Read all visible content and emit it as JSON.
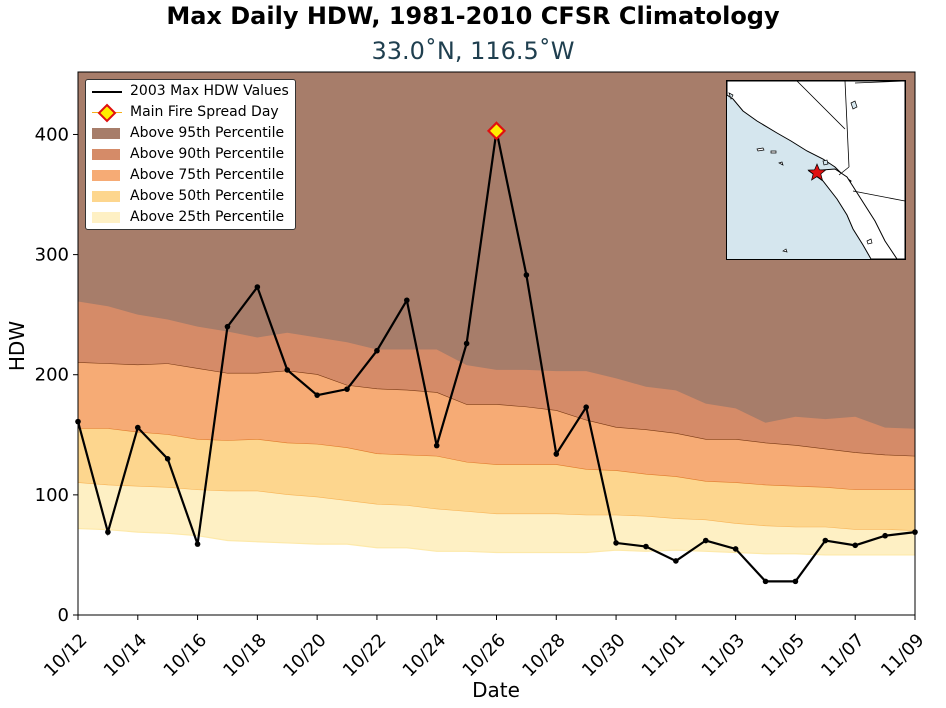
{
  "chart_data": {
    "type": "line",
    "title": "Max Daily HDW, 1981-2010 CFSR Climatology",
    "subtitle": "33.0˚N, 116.5˚W",
    "xlabel": "Date",
    "ylabel": "HDW",
    "ylim": [
      0,
      452
    ],
    "yticks": [
      0,
      100,
      200,
      300,
      400
    ],
    "x": [
      "10/12",
      "10/13",
      "10/14",
      "10/15",
      "10/16",
      "10/17",
      "10/18",
      "10/19",
      "10/20",
      "10/21",
      "10/22",
      "10/23",
      "10/24",
      "10/25",
      "10/26",
      "10/27",
      "10/28",
      "10/29",
      "10/30",
      "10/31",
      "11/01",
      "11/02",
      "11/03",
      "11/04",
      "11/05",
      "11/06",
      "11/07",
      "11/08",
      "11/09"
    ],
    "xticks": [
      "10/12",
      "10/14",
      "10/16",
      "10/18",
      "10/20",
      "10/22",
      "10/24",
      "10/26",
      "10/28",
      "10/30",
      "11/01",
      "11/03",
      "11/05",
      "11/07",
      "11/09"
    ],
    "series": [
      {
        "name": "2003 Max HDW Values",
        "color": "#000000",
        "values": [
          161,
          69,
          156,
          130,
          59,
          240,
          273,
          204,
          183,
          188,
          220,
          262,
          141,
          226,
          403,
          283,
          134,
          173,
          60,
          57,
          45,
          62,
          55,
          28,
          28,
          62,
          58,
          66,
          69
        ]
      }
    ],
    "highlight": {
      "name": "Main Fire Spread Day",
      "x": "10/26",
      "y": 403,
      "fill": "#ffee00",
      "edge": "#e01010"
    },
    "percentile_bands": [
      {
        "name": "Above 95th Percentile",
        "color": "#a77d6a",
        "edge": "#a77d6a",
        "top": 452,
        "values": [
          261,
          257,
          250,
          246,
          240,
          236,
          231,
          235,
          231,
          227,
          221,
          221,
          221,
          208,
          204,
          204,
          203,
          203,
          197,
          190,
          187,
          176,
          172,
          160,
          165,
          163,
          165,
          156,
          155
        ]
      },
      {
        "name": "Above 90th Percentile",
        "color": "#d58b68",
        "edge": "#7a3a15",
        "values": [
          210,
          209,
          208,
          209,
          205,
          201,
          201,
          203,
          200,
          191,
          188,
          187,
          185,
          175,
          175,
          173,
          170,
          162,
          156,
          154,
          151,
          146,
          146,
          143,
          141,
          138,
          135,
          133,
          132
        ]
      },
      {
        "name": "Above 75th Percentile",
        "color": "#f6ab75",
        "edge": "#e07a2a",
        "values": [
          155,
          155,
          152,
          150,
          146,
          145,
          146,
          143,
          142,
          139,
          134,
          133,
          132,
          127,
          125,
          125,
          125,
          121,
          120,
          117,
          115,
          111,
          110,
          108,
          107,
          106,
          104,
          104,
          104
        ]
      },
      {
        "name": "Above 50th Percentile",
        "color": "#fdd68e",
        "edge": "#f7b355",
        "values": [
          110,
          108,
          107,
          106,
          104,
          103,
          103,
          100,
          98,
          95,
          92,
          91,
          88,
          86,
          84,
          84,
          84,
          83,
          83,
          82,
          80,
          79,
          76,
          74,
          73,
          73,
          71,
          71,
          70
        ]
      },
      {
        "name": "Above 25th Percentile",
        "color": "#fef0c4",
        "edge": "#fde9aa",
        "values": [
          72,
          71,
          69,
          68,
          66,
          62,
          61,
          60,
          59,
          59,
          56,
          56,
          53,
          53,
          52,
          52,
          52,
          52,
          54,
          53,
          54,
          53,
          52,
          51,
          51,
          50,
          50,
          50,
          50
        ]
      }
    ],
    "legend_position": "upper-left",
    "inset": {
      "type": "map",
      "marker": "red star",
      "marker_color": "#e01010"
    }
  }
}
